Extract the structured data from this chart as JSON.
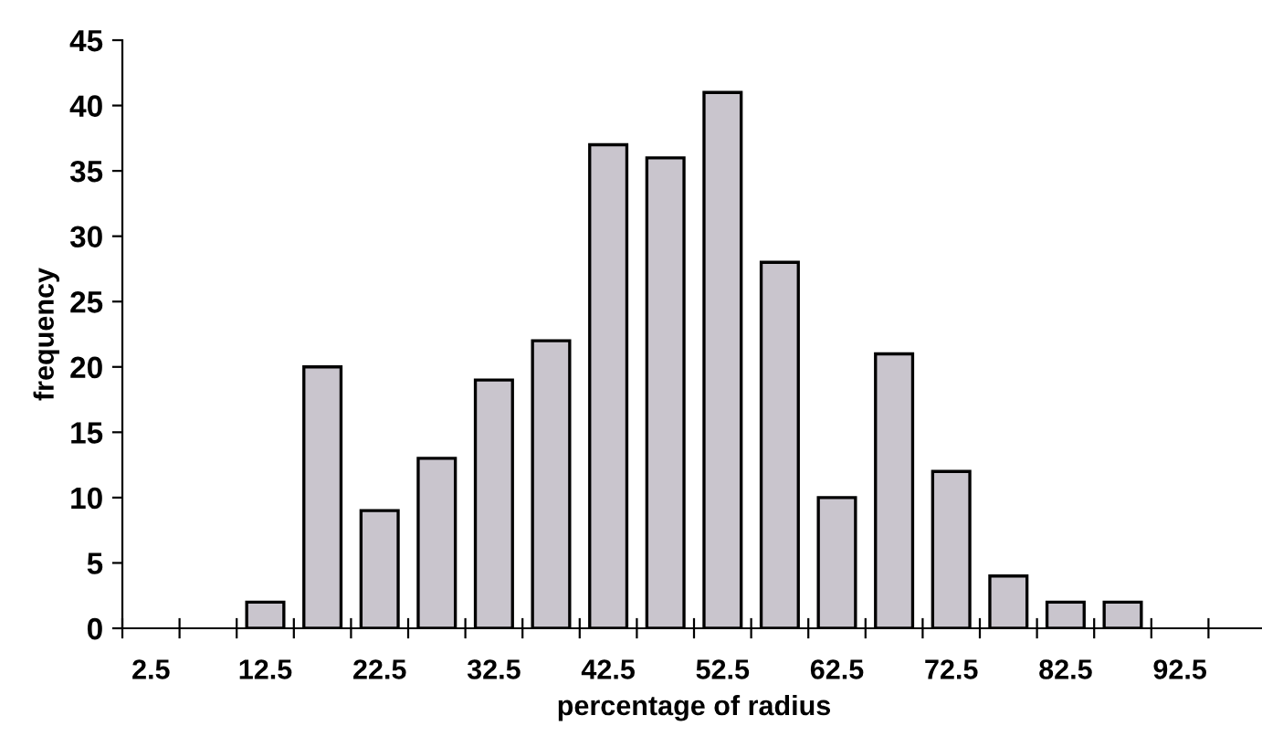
{
  "chart_data": {
    "type": "bar",
    "xlabel": "percentage of radius",
    "ylabel": "frequency",
    "categories": [
      "2.5",
      null,
      "12.5",
      null,
      "22.5",
      null,
      "32.5",
      null,
      "42.5",
      null,
      "52.5",
      null,
      "62.5",
      null,
      "72.5",
      null,
      "82.5",
      null,
      "92.5",
      null
    ],
    "values": [
      0,
      0,
      2,
      20,
      9,
      13,
      19,
      22,
      37,
      36,
      41,
      28,
      10,
      21,
      12,
      4,
      2,
      2,
      0,
      0
    ],
    "color": "#c9c5cd",
    "ylim": [
      0,
      45
    ],
    "yticks": [
      0,
      5,
      10,
      15,
      20,
      25,
      30,
      35,
      40,
      45
    ],
    "grid": false,
    "legend": false
  }
}
